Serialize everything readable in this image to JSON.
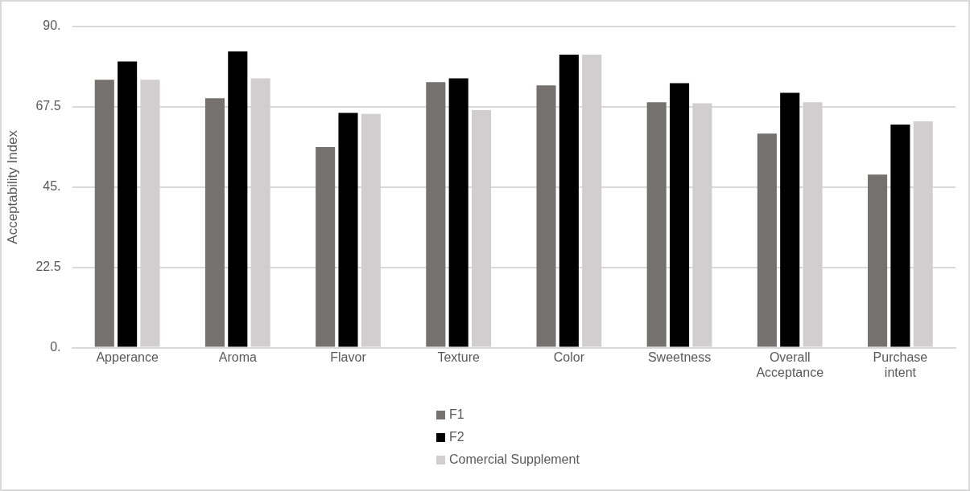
{
  "chart_data": {
    "type": "bar",
    "ylabel": "Acceptability Index",
    "categories": [
      "Apperance",
      "Aroma",
      "Flavor",
      "Texture",
      "Color",
      "Sweetness",
      "Overall Acceptance",
      "Purchase intent"
    ],
    "series": [
      {
        "name": "F1",
        "color": "#767171",
        "values": [
          75.1,
          69.9,
          56.2,
          74.4,
          73.5,
          68.8,
          60.0,
          48.5
        ]
      },
      {
        "name": "F2",
        "color": "#000000",
        "values": [
          80.2,
          83.0,
          65.8,
          75.5,
          82.1,
          74.1,
          71.4,
          62.5
        ]
      },
      {
        "name": "Comercial Supplement",
        "color": "#d0cece",
        "values": [
          75.1,
          75.5,
          65.5,
          66.6,
          82.1,
          68.5,
          68.8,
          63.4
        ]
      }
    ],
    "ylim": [
      0,
      90
    ],
    "yticks": [
      {
        "value": 0,
        "label": "0."
      },
      22.5,
      {
        "value": 45,
        "label": "45."
      },
      67.5,
      {
        "value": 90,
        "label": "90."
      }
    ],
    "grid": "y",
    "legend": "bottom"
  }
}
